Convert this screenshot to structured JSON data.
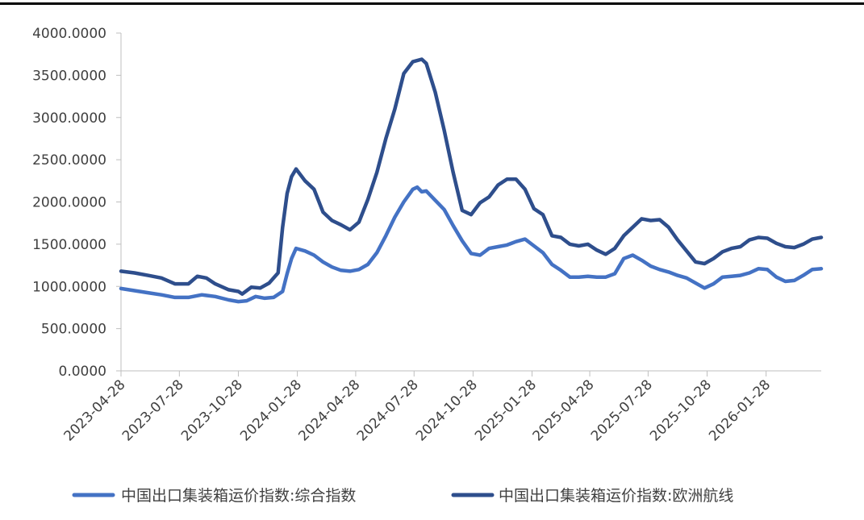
{
  "chart_data": {
    "type": "line",
    "title": "",
    "xlabel": "",
    "ylabel": "",
    "ylim": [
      0,
      4000
    ],
    "yticks": [
      "0.0000",
      "500.0000",
      "1000.0000",
      "1500.0000",
      "2000.0000",
      "2500.0000",
      "3000.0000",
      "3500.0000",
      "4000.0000"
    ],
    "xticks": [
      "2023-04-28",
      "2023-07-28",
      "2023-10-28",
      "2024-01-28",
      "2024-04-28",
      "2024-07-28",
      "2024-10-28",
      "2025-01-28",
      "2025-04-28",
      "2025-07-28",
      "2025-10-28",
      "2026-01-28"
    ],
    "xlim": [
      "2023-04-28",
      "2026-04-24"
    ],
    "grid": false,
    "legend_position": "bottom",
    "series": [
      {
        "name": "中国出口集装箱运价指数:综合指数",
        "color": "#4472C4",
        "points": [
          [
            "2023-04-28",
            975
          ],
          [
            "2023-05-19",
            950
          ],
          [
            "2023-06-09",
            925
          ],
          [
            "2023-06-30",
            900
          ],
          [
            "2023-07-21",
            870
          ],
          [
            "2023-08-11",
            870
          ],
          [
            "2023-09-01",
            900
          ],
          [
            "2023-09-22",
            880
          ],
          [
            "2023-10-13",
            840
          ],
          [
            "2023-10-28",
            820
          ],
          [
            "2023-11-10",
            830
          ],
          [
            "2023-11-24",
            880
          ],
          [
            "2023-12-08",
            860
          ],
          [
            "2023-12-22",
            870
          ],
          [
            "2024-01-05",
            940
          ],
          [
            "2024-01-12",
            1150
          ],
          [
            "2024-01-19",
            1330
          ],
          [
            "2024-01-26",
            1450
          ],
          [
            "2024-02-09",
            1420
          ],
          [
            "2024-02-23",
            1370
          ],
          [
            "2024-03-08",
            1290
          ],
          [
            "2024-03-22",
            1230
          ],
          [
            "2024-04-05",
            1190
          ],
          [
            "2024-04-19",
            1180
          ],
          [
            "2024-05-03",
            1200
          ],
          [
            "2024-05-17",
            1260
          ],
          [
            "2024-05-31",
            1400
          ],
          [
            "2024-06-14",
            1600
          ],
          [
            "2024-06-28",
            1820
          ],
          [
            "2024-07-12",
            2000
          ],
          [
            "2024-07-26",
            2150
          ],
          [
            "2024-08-02",
            2175
          ],
          [
            "2024-08-09",
            2120
          ],
          [
            "2024-08-16",
            2130
          ],
          [
            "2024-08-30",
            2020
          ],
          [
            "2024-09-13",
            1910
          ],
          [
            "2024-09-27",
            1720
          ],
          [
            "2024-10-11",
            1540
          ],
          [
            "2024-10-25",
            1390
          ],
          [
            "2024-11-08",
            1370
          ],
          [
            "2024-11-22",
            1450
          ],
          [
            "2024-12-06",
            1470
          ],
          [
            "2024-12-20",
            1490
          ],
          [
            "2025-01-03",
            1530
          ],
          [
            "2025-01-17",
            1560
          ],
          [
            "2025-01-31",
            1480
          ],
          [
            "2025-02-14",
            1400
          ],
          [
            "2025-02-28",
            1260
          ],
          [
            "2025-03-14",
            1190
          ],
          [
            "2025-03-28",
            1110
          ],
          [
            "2025-04-11",
            1110
          ],
          [
            "2025-04-25",
            1120
          ],
          [
            "2025-05-09",
            1110
          ],
          [
            "2025-05-23",
            1110
          ],
          [
            "2025-06-06",
            1150
          ],
          [
            "2025-06-20",
            1330
          ],
          [
            "2025-07-04",
            1370
          ],
          [
            "2025-07-18",
            1310
          ],
          [
            "2025-08-01",
            1240
          ],
          [
            "2025-08-15",
            1200
          ],
          [
            "2025-08-29",
            1170
          ],
          [
            "2025-09-12",
            1130
          ],
          [
            "2025-09-26",
            1100
          ],
          [
            "2025-10-10",
            1040
          ],
          [
            "2025-10-24",
            980
          ],
          [
            "2025-11-07",
            1030
          ],
          [
            "2025-11-21",
            1110
          ],
          [
            "2025-12-05",
            1120
          ],
          [
            "2025-12-19",
            1130
          ],
          [
            "2026-01-02",
            1160
          ],
          [
            "2026-01-16",
            1210
          ],
          [
            "2026-01-30",
            1200
          ],
          [
            "2026-02-13",
            1110
          ],
          [
            "2026-02-27",
            1060
          ],
          [
            "2026-03-13",
            1070
          ],
          [
            "2026-03-27",
            1130
          ],
          [
            "2026-04-10",
            1200
          ],
          [
            "2026-04-24",
            1210
          ]
        ]
      },
      {
        "name": "中国出口集装箱运价指数:欧洲航线",
        "color": "#2E4E8C",
        "points": [
          [
            "2023-04-28",
            1180
          ],
          [
            "2023-05-19",
            1160
          ],
          [
            "2023-06-09",
            1130
          ],
          [
            "2023-06-30",
            1100
          ],
          [
            "2023-07-21",
            1030
          ],
          [
            "2023-08-11",
            1030
          ],
          [
            "2023-08-25",
            1120
          ],
          [
            "2023-09-08",
            1100
          ],
          [
            "2023-09-22",
            1030
          ],
          [
            "2023-10-13",
            960
          ],
          [
            "2023-10-28",
            940
          ],
          [
            "2023-11-03",
            910
          ],
          [
            "2023-11-17",
            990
          ],
          [
            "2023-12-01",
            980
          ],
          [
            "2023-12-15",
            1040
          ],
          [
            "2023-12-29",
            1160
          ],
          [
            "2024-01-05",
            1700
          ],
          [
            "2024-01-12",
            2100
          ],
          [
            "2024-01-19",
            2300
          ],
          [
            "2024-01-26",
            2390
          ],
          [
            "2024-02-09",
            2250
          ],
          [
            "2024-02-23",
            2150
          ],
          [
            "2024-03-08",
            1880
          ],
          [
            "2024-03-22",
            1780
          ],
          [
            "2024-04-05",
            1730
          ],
          [
            "2024-04-19",
            1670
          ],
          [
            "2024-05-03",
            1760
          ],
          [
            "2024-05-17",
            2030
          ],
          [
            "2024-05-31",
            2350
          ],
          [
            "2024-06-14",
            2750
          ],
          [
            "2024-06-28",
            3100
          ],
          [
            "2024-07-12",
            3520
          ],
          [
            "2024-07-26",
            3660
          ],
          [
            "2024-08-09",
            3690
          ],
          [
            "2024-08-16",
            3640
          ],
          [
            "2024-08-30",
            3300
          ],
          [
            "2024-09-13",
            2850
          ],
          [
            "2024-09-27",
            2350
          ],
          [
            "2024-10-11",
            1900
          ],
          [
            "2024-10-25",
            1850
          ],
          [
            "2024-11-08",
            1990
          ],
          [
            "2024-11-22",
            2060
          ],
          [
            "2024-12-06",
            2200
          ],
          [
            "2024-12-20",
            2270
          ],
          [
            "2025-01-03",
            2270
          ],
          [
            "2025-01-17",
            2150
          ],
          [
            "2025-01-31",
            1920
          ],
          [
            "2025-02-14",
            1850
          ],
          [
            "2025-02-28",
            1600
          ],
          [
            "2025-03-14",
            1580
          ],
          [
            "2025-03-28",
            1500
          ],
          [
            "2025-04-11",
            1480
          ],
          [
            "2025-04-25",
            1500
          ],
          [
            "2025-05-09",
            1430
          ],
          [
            "2025-05-23",
            1380
          ],
          [
            "2025-06-06",
            1450
          ],
          [
            "2025-06-20",
            1600
          ],
          [
            "2025-07-04",
            1700
          ],
          [
            "2025-07-18",
            1800
          ],
          [
            "2025-08-01",
            1780
          ],
          [
            "2025-08-15",
            1790
          ],
          [
            "2025-08-29",
            1700
          ],
          [
            "2025-09-12",
            1550
          ],
          [
            "2025-09-26",
            1420
          ],
          [
            "2025-10-10",
            1290
          ],
          [
            "2025-10-24",
            1270
          ],
          [
            "2025-11-07",
            1330
          ],
          [
            "2025-11-21",
            1410
          ],
          [
            "2025-12-05",
            1450
          ],
          [
            "2025-12-19",
            1470
          ],
          [
            "2026-01-02",
            1550
          ],
          [
            "2026-01-16",
            1580
          ],
          [
            "2026-01-30",
            1570
          ],
          [
            "2026-02-13",
            1510
          ],
          [
            "2026-02-27",
            1470
          ],
          [
            "2026-03-13",
            1460
          ],
          [
            "2026-03-27",
            1500
          ],
          [
            "2026-04-10",
            1560
          ],
          [
            "2026-04-24",
            1580
          ]
        ]
      }
    ]
  }
}
